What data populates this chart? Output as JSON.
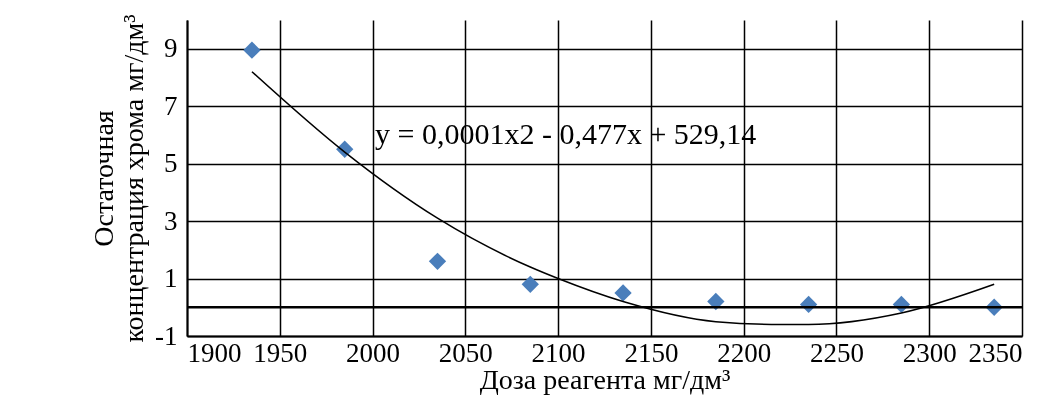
{
  "chart_data": {
    "type": "scatter",
    "xlabel": "Доза реагента мг/дм³",
    "ylabel": "Остаточная концентрация хрома мг/дм³",
    "xlim": [
      1900,
      2350
    ],
    "xticks": [
      1900,
      1950,
      2000,
      2050,
      2100,
      2150,
      2200,
      2250,
      2300,
      2350
    ],
    "ylim": [
      -1,
      10
    ],
    "yticks": [
      -1,
      1,
      3,
      5,
      7,
      9
    ],
    "grid": true,
    "x": [
      1935,
      1985,
      2035,
      2085,
      2135,
      2185,
      2235,
      2285,
      2335
    ],
    "series": [
      {
        "marker": "diamond",
        "color": "#4a7ebb",
        "values": [
          8.95,
          5.5,
          1.6,
          0.8,
          0.5,
          0.2,
          0.1,
          0.1,
          0.0
        ]
      },
      {
        "type": "line",
        "color": "#000000",
        "x": [
          1935,
          1985,
          2035,
          2085,
          2100,
          2135,
          2185,
          2220,
          2235,
          2285,
          2335
        ],
        "values": [
          8.2,
          5.4,
          3.1,
          1.4,
          1.0,
          0.2,
          -0.5,
          -0.6,
          -0.6,
          -0.2,
          0.8
        ]
      }
    ],
    "ref_lines": [
      {
        "axis": "y",
        "value": 0,
        "color": "#000000"
      }
    ],
    "annotations": [
      "y = 0,0001x2 - 0,477x + 529,14"
    ]
  }
}
